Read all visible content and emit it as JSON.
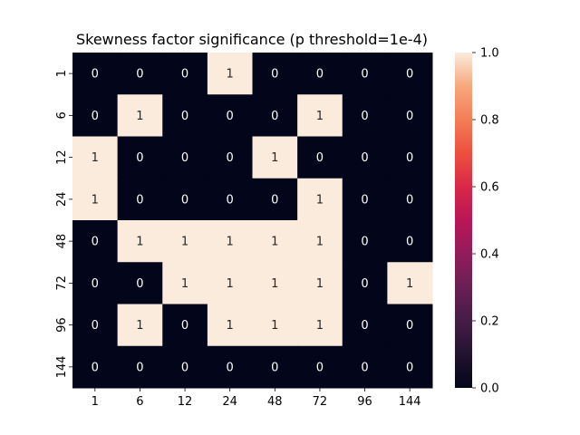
{
  "chart_data": {
    "type": "heatmap",
    "title": "Skewness factor significance (p threshold=1e-4)",
    "xlabel": "",
    "ylabel": "",
    "x_categories": [
      "1",
      "6",
      "12",
      "24",
      "48",
      "72",
      "96",
      "144"
    ],
    "y_categories": [
      "1",
      "6",
      "12",
      "24",
      "48",
      "72",
      "96",
      "144"
    ],
    "values": [
      [
        0,
        0,
        0,
        1,
        0,
        0,
        0,
        0
      ],
      [
        0,
        1,
        0,
        0,
        0,
        1,
        0,
        0
      ],
      [
        1,
        0,
        0,
        0,
        1,
        0,
        0,
        0
      ],
      [
        1,
        0,
        0,
        0,
        0,
        1,
        0,
        0
      ],
      [
        0,
        1,
        1,
        1,
        1,
        1,
        0,
        0
      ],
      [
        0,
        0,
        1,
        1,
        1,
        1,
        0,
        1
      ],
      [
        0,
        1,
        0,
        1,
        1,
        1,
        0,
        0
      ],
      [
        0,
        0,
        0,
        0,
        0,
        0,
        0,
        0
      ]
    ],
    "annotated": true,
    "colorbar": {
      "range": [
        0.0,
        1.0
      ],
      "ticks": [
        "0.0",
        "0.2",
        "0.4",
        "0.6",
        "0.8",
        "1.0"
      ],
      "colormap": "rocket"
    },
    "colors": {
      "low": "#03051a",
      "high": "#faebdd",
      "text_on_low": "#ffffff",
      "text_on_high": "#262626"
    }
  }
}
